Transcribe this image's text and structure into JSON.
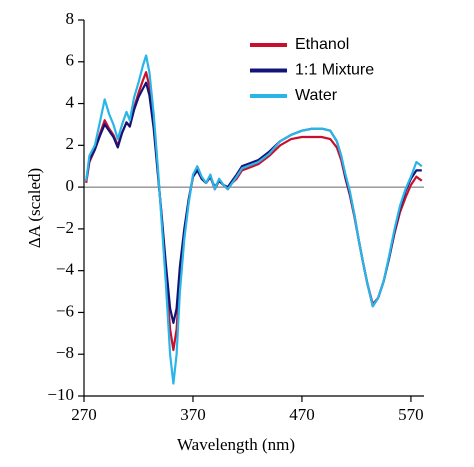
{
  "chart_data": {
    "type": "line",
    "xlabel": "Wavelength (nm)",
    "ylabel": "ΔA (scaled)",
    "x": [
      272,
      275,
      280,
      285,
      289,
      293,
      297,
      301,
      305,
      309,
      312,
      316,
      320,
      324,
      327,
      330,
      334,
      338,
      341,
      345,
      349,
      352,
      355,
      358,
      362,
      366,
      370,
      374,
      378,
      382,
      386,
      390,
      394,
      398,
      402,
      406,
      410,
      415,
      420,
      430,
      440,
      450,
      460,
      470,
      480,
      488,
      496,
      502,
      506,
      510,
      514,
      518,
      522,
      526,
      530,
      535,
      540,
      545,
      550,
      555,
      560,
      565,
      570,
      575,
      580
    ],
    "series": [
      {
        "name": "Ethanol",
        "color": "#c8102e",
        "values": [
          0.2,
          1.2,
          1.8,
          2.6,
          3.2,
          2.8,
          2.5,
          2.0,
          2.6,
          3.1,
          2.9,
          3.8,
          4.5,
          5.1,
          5.5,
          4.8,
          3.0,
          0.6,
          -1.3,
          -4.0,
          -6.8,
          -7.8,
          -6.8,
          -4.3,
          -2.2,
          -0.7,
          0.5,
          0.9,
          0.4,
          0.2,
          0.5,
          -0.1,
          0.3,
          0.1,
          -0.1,
          0.2,
          0.4,
          0.8,
          0.9,
          1.1,
          1.5,
          2.0,
          2.3,
          2.4,
          2.4,
          2.4,
          2.3,
          1.9,
          1.3,
          0.4,
          -0.4,
          -1.4,
          -2.5,
          -3.6,
          -4.6,
          -5.6,
          -5.3,
          -4.5,
          -3.4,
          -2.2,
          -1.2,
          -0.5,
          0.1,
          0.5,
          0.3
        ]
      },
      {
        "name": "1:1 Mixture",
        "color": "#141478",
        "values": [
          0.3,
          1.3,
          1.8,
          2.5,
          3.0,
          2.7,
          2.4,
          1.9,
          2.6,
          3.1,
          2.9,
          3.7,
          4.3,
          4.7,
          5.0,
          4.4,
          2.8,
          0.5,
          -1.2,
          -3.6,
          -5.8,
          -6.5,
          -5.8,
          -3.8,
          -2.0,
          -0.6,
          0.5,
          0.8,
          0.4,
          0.2,
          0.5,
          0.0,
          0.3,
          0.1,
          0.0,
          0.3,
          0.6,
          1.0,
          1.1,
          1.3,
          1.7,
          2.2,
          2.5,
          2.7,
          2.8,
          2.8,
          2.7,
          2.2,
          1.5,
          0.5,
          -0.3,
          -1.3,
          -2.5,
          -3.6,
          -4.6,
          -5.7,
          -5.3,
          -4.5,
          -3.4,
          -2.1,
          -1.0,
          -0.2,
          0.4,
          0.8,
          0.8
        ]
      },
      {
        "name": "Water",
        "color": "#29b5e8",
        "values": [
          0.3,
          1.5,
          2.0,
          3.2,
          4.2,
          3.5,
          3.0,
          2.3,
          3.0,
          3.6,
          3.2,
          4.3,
          5.0,
          5.8,
          6.3,
          5.5,
          3.5,
          0.8,
          -1.5,
          -4.5,
          -8.0,
          -9.4,
          -8.0,
          -5.0,
          -2.5,
          -0.8,
          0.6,
          1.0,
          0.5,
          0.2,
          0.6,
          -0.1,
          0.4,
          0.1,
          -0.1,
          0.2,
          0.5,
          0.9,
          1.0,
          1.2,
          1.6,
          2.2,
          2.5,
          2.7,
          2.8,
          2.8,
          2.7,
          2.2,
          1.5,
          0.6,
          -0.2,
          -1.3,
          -2.5,
          -3.6,
          -4.6,
          -5.7,
          -5.3,
          -4.5,
          -3.3,
          -2.0,
          -0.9,
          -0.1,
          0.5,
          1.2,
          1.0
        ]
      }
    ],
    "xlim": [
      270,
      582
    ],
    "xticks": [
      270,
      370,
      470,
      570
    ],
    "ylim": [
      -10,
      8
    ],
    "yticks": [
      {
        "value": -10,
        "label": "−10"
      },
      {
        "value": -8,
        "label": "−8"
      },
      {
        "value": -6,
        "label": "−6"
      },
      {
        "value": -4,
        "label": "−4"
      },
      {
        "value": -2,
        "label": "−2"
      },
      0,
      2,
      4,
      6,
      8
    ],
    "legend": "upper right"
  }
}
